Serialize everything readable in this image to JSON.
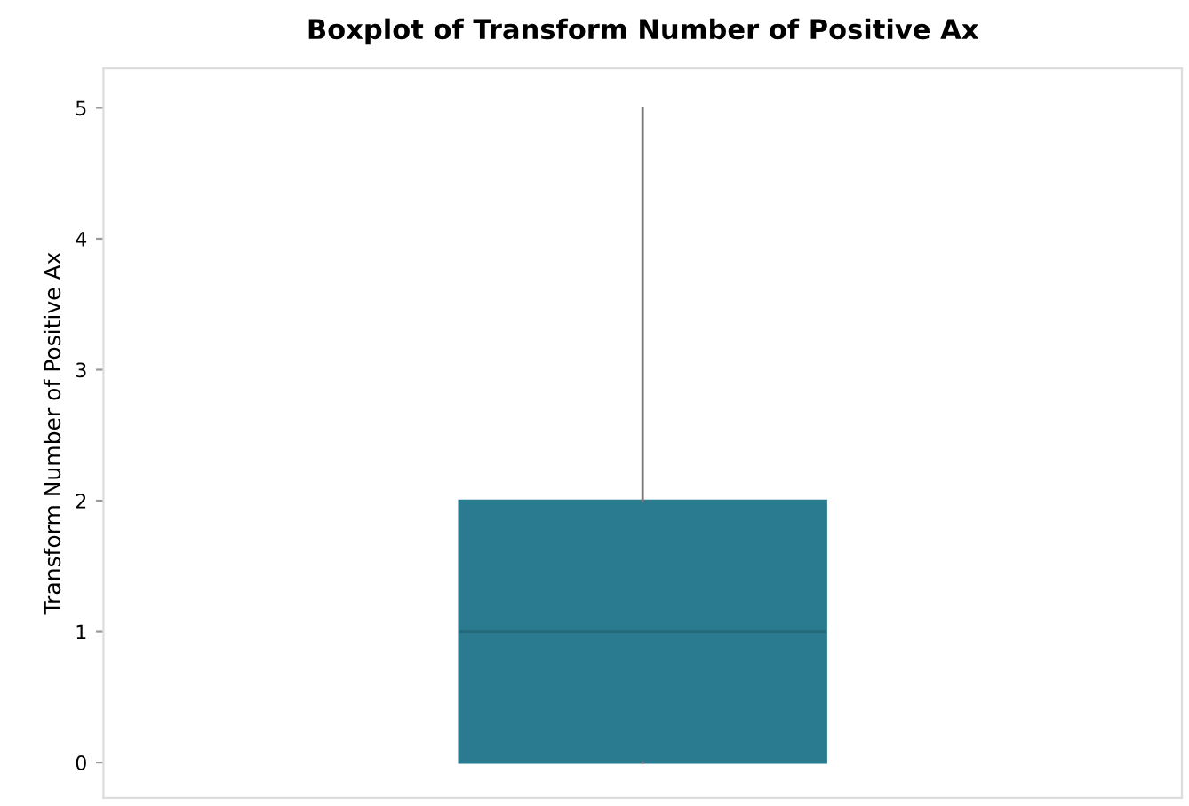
{
  "chart_data": {
    "type": "box",
    "title": "Boxplot of Transform Number of Positive Ax",
    "ylabel": "Transform Number of Positive Ax",
    "categories": [
      null
    ],
    "boxes": [
      {
        "low": 0,
        "q1": 0,
        "median": 1,
        "q3": 2,
        "high": 5
      }
    ],
    "color": "#2a7b8f",
    "ylim": [
      -0.27,
      5.3
    ],
    "yticks": [
      0,
      1,
      2,
      3,
      4,
      5
    ],
    "grid": false
  }
}
